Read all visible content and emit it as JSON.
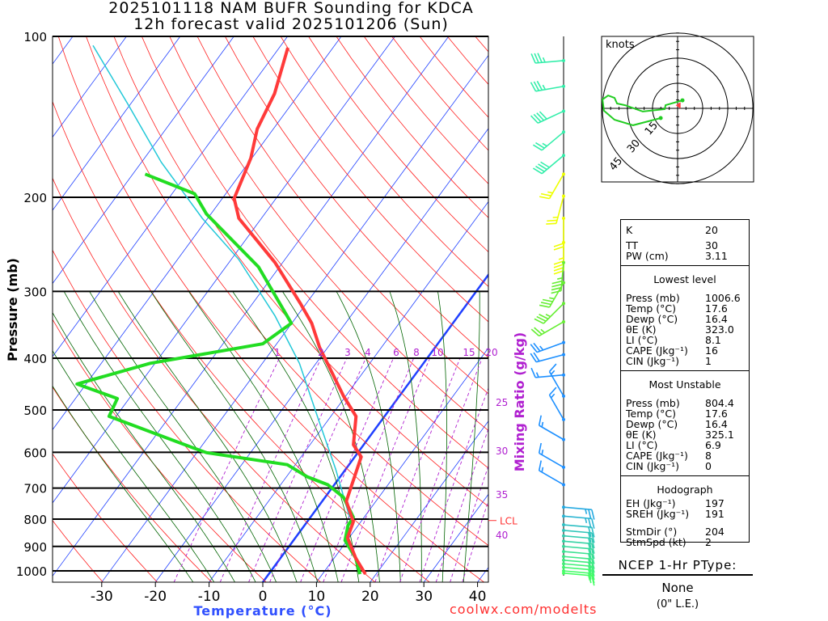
{
  "header": {
    "title_line1": "2025101118 NAM BUFR Sounding for KDCA",
    "title_line2": "12h forecast valid 2025101206 (Sun)"
  },
  "footer": "coolwx.com/modelts",
  "colors": {
    "temperature": "#ff3a3a",
    "dewpoint": "#22dd22",
    "parcel": "#22c8d8",
    "isotherm": "#2040ff",
    "dry_adiabat": "#ff2020",
    "moist_adiabat": "#006400",
    "mixing_ratio": "#b020d0"
  },
  "indices": {
    "rows": [
      {
        "label": "K",
        "value": "20"
      },
      {
        "label": "TT",
        "value": "30"
      },
      {
        "label": "PW (cm)",
        "value": "3.11"
      }
    ]
  },
  "lowest_level": {
    "heading": "Lowest level",
    "rows": [
      {
        "label": "Press (mb)",
        "value": "1006.6"
      },
      {
        "label": "Temp (°C)",
        "value": "17.6"
      },
      {
        "label": "Dewp (°C)",
        "value": "16.4"
      },
      {
        "label": "θE (K)",
        "value": "323.0"
      },
      {
        "label": "LI (°C)",
        "value": "8.1"
      },
      {
        "label": "CAPE (Jkg⁻¹)",
        "value": "16"
      },
      {
        "label": "CIN (Jkg⁻¹)",
        "value": "1"
      }
    ]
  },
  "most_unstable": {
    "heading": "Most Unstable",
    "rows": [
      {
        "label": "Press (mb)",
        "value": "804.4"
      },
      {
        "label": "Temp (°C)",
        "value": "17.6"
      },
      {
        "label": "Dewp (°C)",
        "value": "16.4"
      },
      {
        "label": "θE (K)",
        "value": "325.1"
      },
      {
        "label": "LI (°C)",
        "value": "6.9"
      },
      {
        "label": "CAPE (Jkg⁻¹)",
        "value": "8"
      },
      {
        "label": "CIN (Jkg⁻¹)",
        "value": "0"
      }
    ]
  },
  "hodograph_stats": {
    "heading": "Hodograph",
    "rows": [
      {
        "label": "EH (Jkg⁻¹)",
        "value": "197"
      },
      {
        "label": "SREH (Jkg⁻¹)",
        "value": "191"
      }
    ],
    "rows2": [
      {
        "label": "StmDir (°)",
        "value": "204"
      },
      {
        "label": "StmSpd (kt)",
        "value": "2"
      }
    ]
  },
  "ptype": {
    "title": "NCEP 1-Hr PType:",
    "value": "None",
    "le": "(0\" L.E.)"
  },
  "chart_data": {
    "type": "skew-t",
    "title": "2025101118 NAM BUFR Sounding for KDCA",
    "xlabel": "Temperature (°C)",
    "ylabel": "Pressure (mb)",
    "y2label": "Mixing Ratio (g/kg)",
    "xlim": [
      -40,
      42
    ],
    "ylim": [
      1050,
      100
    ],
    "pressure_ticks": [
      100,
      200,
      300,
      400,
      500,
      600,
      700,
      800,
      900,
      1000
    ],
    "temperature_ticks": [
      -30,
      -20,
      -10,
      0,
      10,
      20,
      30,
      40
    ],
    "mixing_ratio_top_labels": [
      1,
      2,
      3,
      4,
      6,
      8,
      10,
      15,
      20
    ],
    "mixing_ratio_right_labels": [
      25,
      30,
      35,
      40
    ],
    "lcl_label": "LCL",
    "lcl_pressure": 805,
    "temperature": [
      [
        1014,
        18.0
      ],
      [
        946,
        14.0
      ],
      [
        867,
        9.7
      ],
      [
        809,
        8.6
      ],
      [
        741,
        4.5
      ],
      [
        612,
        1.2
      ],
      [
        581,
        -1.9
      ],
      [
        514,
        -5.3
      ],
      [
        471,
        -10.4
      ],
      [
        382,
        -21.5
      ],
      [
        344,
        -26.3
      ],
      [
        316,
        -31.1
      ],
      [
        265,
        -41.4
      ],
      [
        219,
        -54.2
      ],
      [
        201,
        -57.8
      ],
      [
        169,
        -60.2
      ],
      [
        149,
        -63.0
      ],
      [
        128,
        -64.6
      ],
      [
        105,
        -68.4
      ]
    ],
    "dewpoint": [
      [
        1014,
        17.0
      ],
      [
        946,
        14.0
      ],
      [
        877,
        9.6
      ],
      [
        822,
        8.1
      ],
      [
        794,
        8.0
      ],
      [
        728,
        3.4
      ],
      [
        690,
        -1.2
      ],
      [
        667,
        -6.1
      ],
      [
        633,
        -11.5
      ],
      [
        601,
        -28.2
      ],
      [
        590,
        -31.0
      ],
      [
        514,
        -51.3
      ],
      [
        476,
        -52.2
      ],
      [
        447,
        -61.7
      ],
      [
        409,
        -50.9
      ],
      [
        376,
        -32.6
      ],
      [
        344,
        -30.1
      ],
      [
        270,
        -43.9
      ],
      [
        215,
        -60.8
      ],
      [
        197,
        -65.8
      ],
      [
        181,
        -77.7
      ]
    ],
    "parcel": [
      [
        794,
        7.3
      ],
      [
        645,
        -1.9
      ],
      [
        524,
        -11.6
      ],
      [
        409,
        -23.1
      ],
      [
        333,
        -34.2
      ],
      [
        261,
        -48.7
      ],
      [
        219,
        -61.0
      ],
      [
        172,
        -76.3
      ],
      [
        135,
        -90.0
      ],
      [
        104,
        -105.0
      ]
    ],
    "winds": [
      [
        111,
        265,
        35
      ],
      [
        124,
        260,
        35
      ],
      [
        138,
        245,
        40
      ],
      [
        151,
        230,
        25
      ],
      [
        167,
        230,
        40
      ],
      [
        181,
        210,
        25
      ],
      [
        199,
        195,
        25
      ],
      [
        219,
        180,
        20
      ],
      [
        243,
        180,
        45
      ],
      [
        265,
        185,
        45
      ],
      [
        289,
        210,
        35
      ],
      [
        316,
        225,
        35
      ],
      [
        342,
        240,
        25
      ],
      [
        374,
        250,
        25
      ],
      [
        394,
        255,
        20
      ],
      [
        430,
        265,
        15
      ],
      [
        471,
        330,
        15
      ],
      [
        521,
        330,
        15
      ],
      [
        568,
        300,
        15
      ],
      [
        640,
        300,
        15
      ],
      [
        690,
        300,
        15
      ],
      [
        760,
        95,
        25
      ],
      [
        790,
        95,
        25
      ],
      [
        820,
        95,
        22
      ],
      [
        840,
        95,
        22
      ],
      [
        860,
        95,
        22
      ],
      [
        880,
        95,
        22
      ],
      [
        900,
        95,
        22
      ],
      [
        920,
        95,
        22
      ],
      [
        940,
        95,
        22
      ],
      [
        955,
        95,
        22
      ],
      [
        970,
        95,
        22
      ],
      [
        985,
        95,
        20
      ],
      [
        1000,
        95,
        20
      ],
      [
        1010,
        95,
        15
      ]
    ],
    "hodograph": {
      "unit_label": "knots",
      "ring_labels": [
        "15",
        "30",
        "45"
      ],
      "ring_values": [
        15,
        30,
        45
      ],
      "trace_uv": [
        [
          2.9,
          4.8
        ],
        [
          -7.2,
          1.9
        ],
        [
          -7.7,
          -0.5
        ],
        [
          -20.8,
          -1.9
        ],
        [
          -31.4,
          1.9
        ],
        [
          -36.2,
          2.9
        ],
        [
          -37.7,
          6.3
        ],
        [
          -41.5,
          7.7
        ],
        [
          -44.9,
          5.3
        ],
        [
          -44.0,
          -1.4
        ],
        [
          -37.7,
          -6.8
        ],
        [
          -26.6,
          -10.1
        ],
        [
          -10.1,
          -5.8
        ]
      ],
      "storm_motion": {
        "dir": 204,
        "speed": 2
      }
    }
  }
}
